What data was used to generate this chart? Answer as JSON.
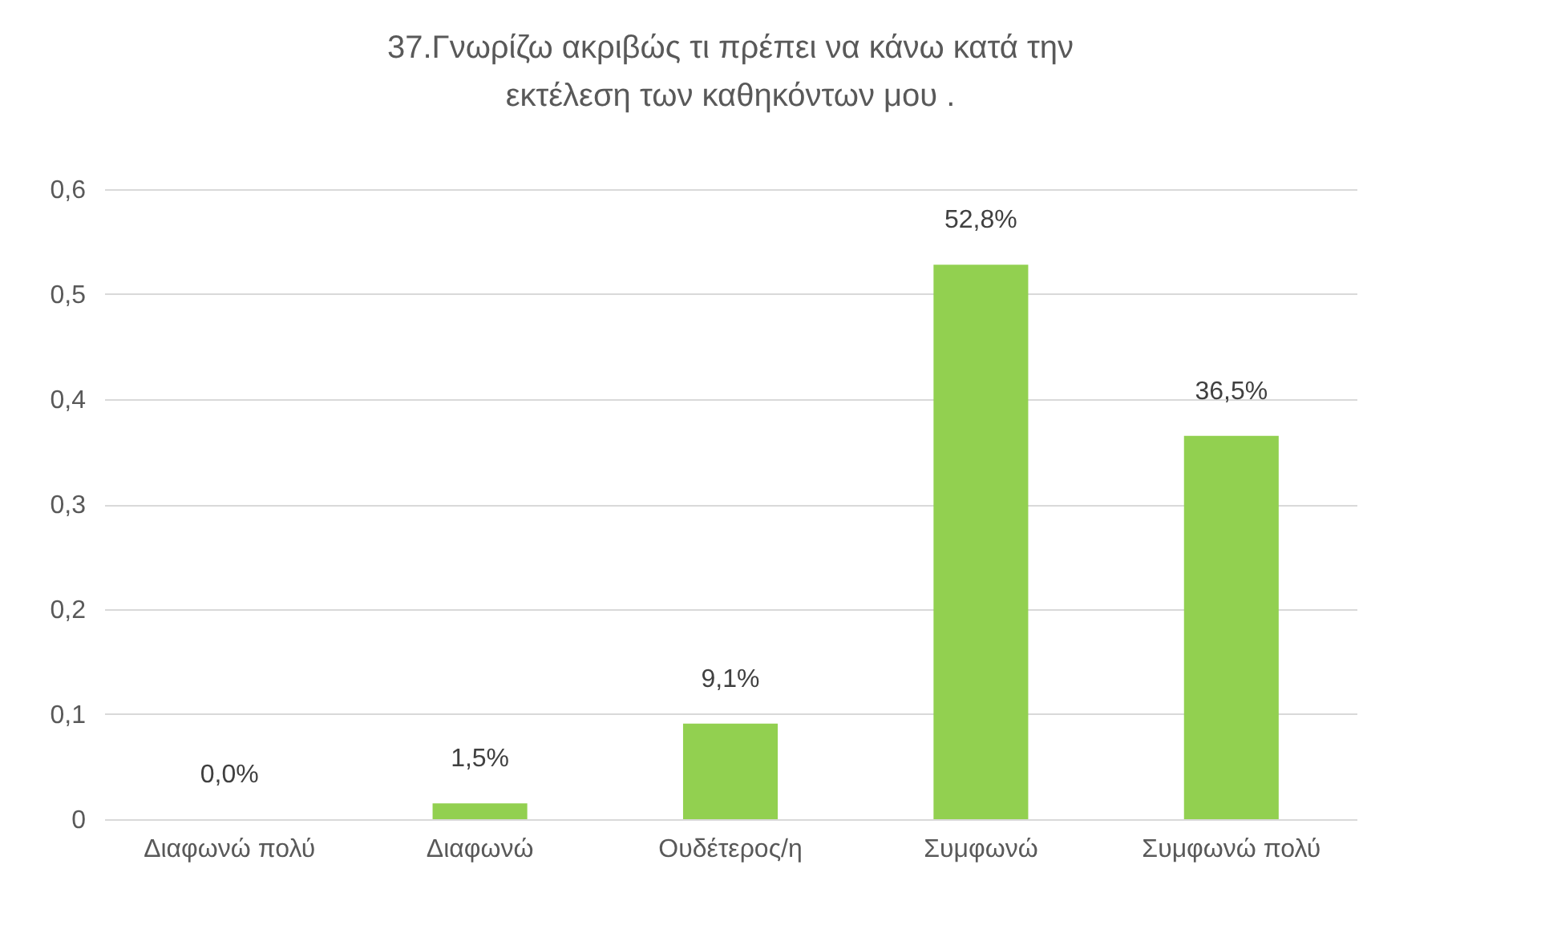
{
  "chart_data": {
    "type": "bar",
    "title": "37.Γνωρίζω ακριβώς τι πρέπει να κάνω κατά την εκτέλεση των καθηκόντων μου .",
    "categories": [
      "Διαφωνώ πολύ",
      "Διαφωνώ",
      "Ουδέτερος/η",
      "Συμφωνώ",
      "Συμφωνώ πολύ"
    ],
    "values": [
      0,
      0.015,
      0.091,
      0.528,
      0.365
    ],
    "value_labels": [
      "0,0%",
      "1,5%",
      "9,1%",
      "52,8%",
      "36,5%"
    ],
    "color": "#92d050",
    "ylim": [
      0,
      0.6
    ],
    "yticks": [
      0,
      {
        "value": 0.1,
        "label": "0,1"
      },
      {
        "value": 0.2,
        "label": "0,2"
      },
      {
        "value": 0.3,
        "label": "0,3"
      },
      {
        "value": 0.4,
        "label": "0,4"
      },
      {
        "value": 0.5,
        "label": "0,5"
      },
      {
        "value": 0.6,
        "label": "0,6"
      }
    ],
    "grid": true
  }
}
